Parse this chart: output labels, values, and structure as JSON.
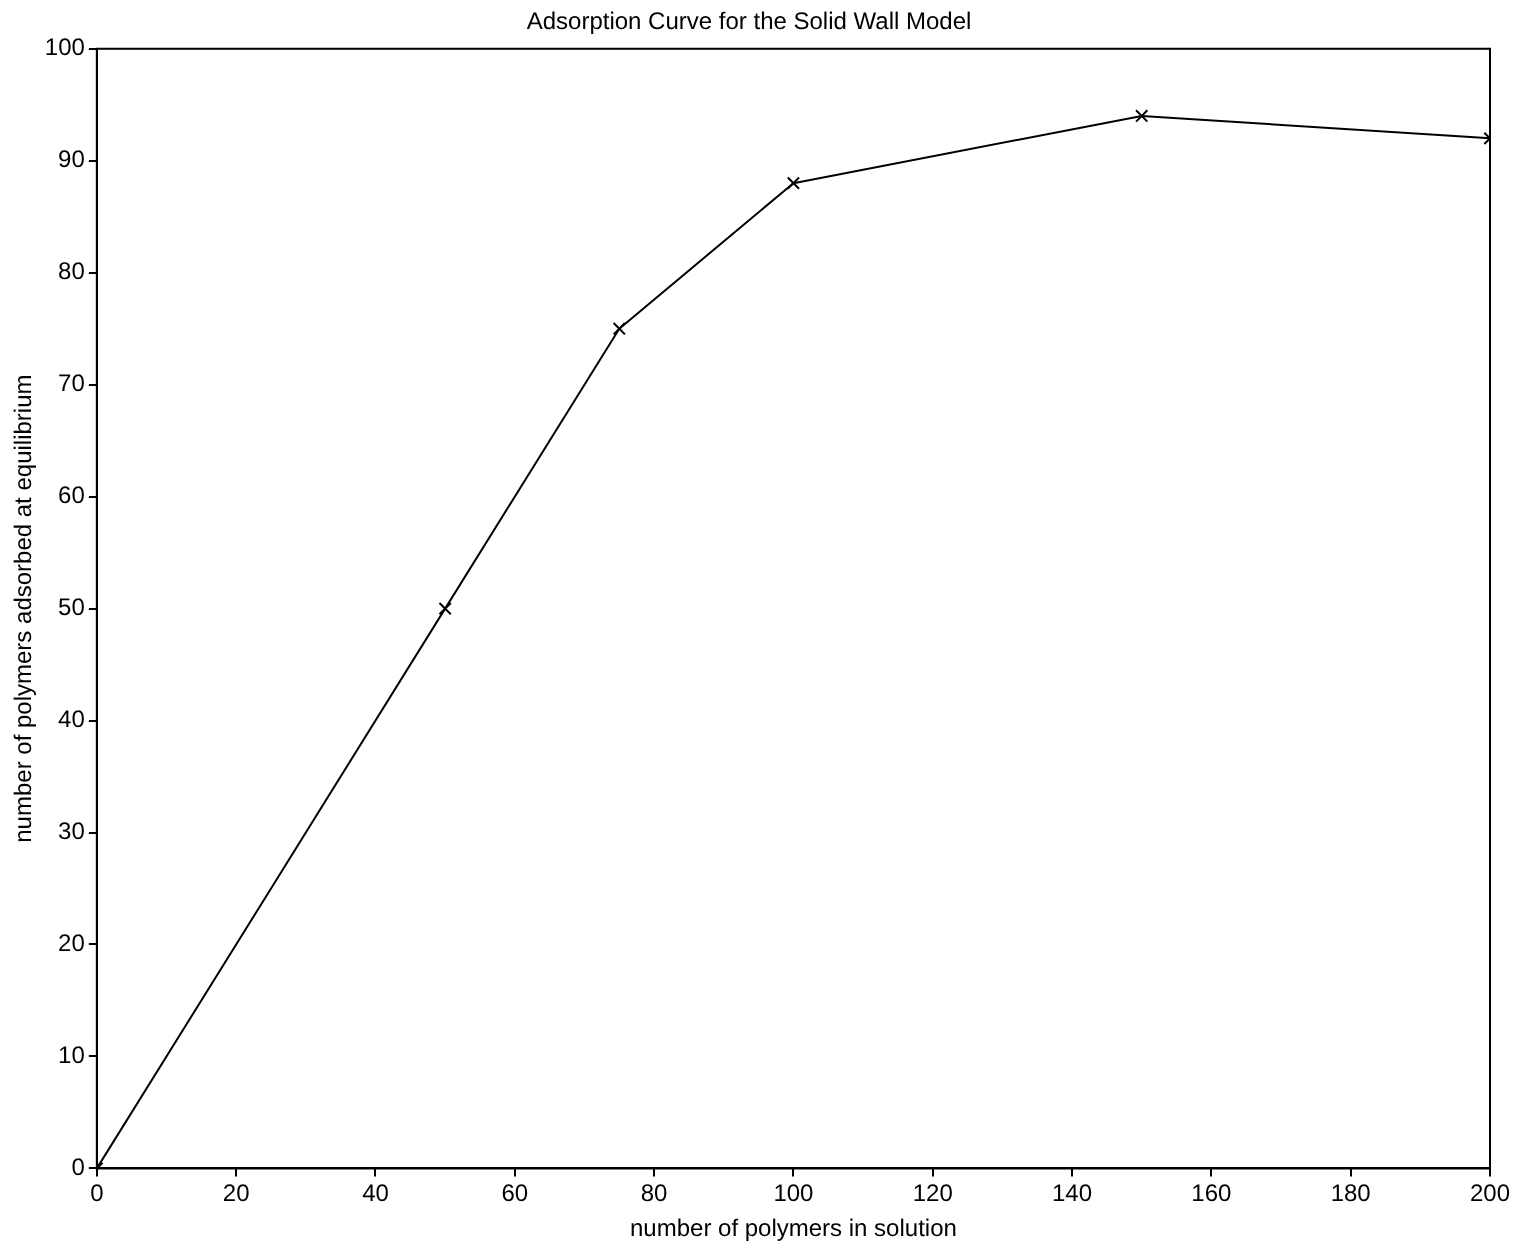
{
  "chart_data": {
    "type": "line",
    "title": "Adsorption Curve for the Solid Wall Model",
    "xlabel": "number of polymers in solution",
    "ylabel": "number of polymers adsorbed at equilibrium",
    "x": [
      0,
      50,
      75,
      100,
      150,
      200
    ],
    "series": [
      {
        "color": "#000000",
        "values": [
          0,
          50,
          75,
          88,
          94,
          92
        ]
      }
    ],
    "xlim": [
      0,
      200
    ],
    "xticks": [
      0,
      20,
      40,
      60,
      80,
      100,
      120,
      140,
      160,
      180,
      200
    ],
    "ylim": [
      0,
      100
    ],
    "yticks": [
      0,
      10,
      20,
      30,
      40,
      50,
      60,
      70,
      80,
      90,
      100
    ],
    "grid": false,
    "legend": false,
    "marker": "cross",
    "line_style": "solid"
  }
}
